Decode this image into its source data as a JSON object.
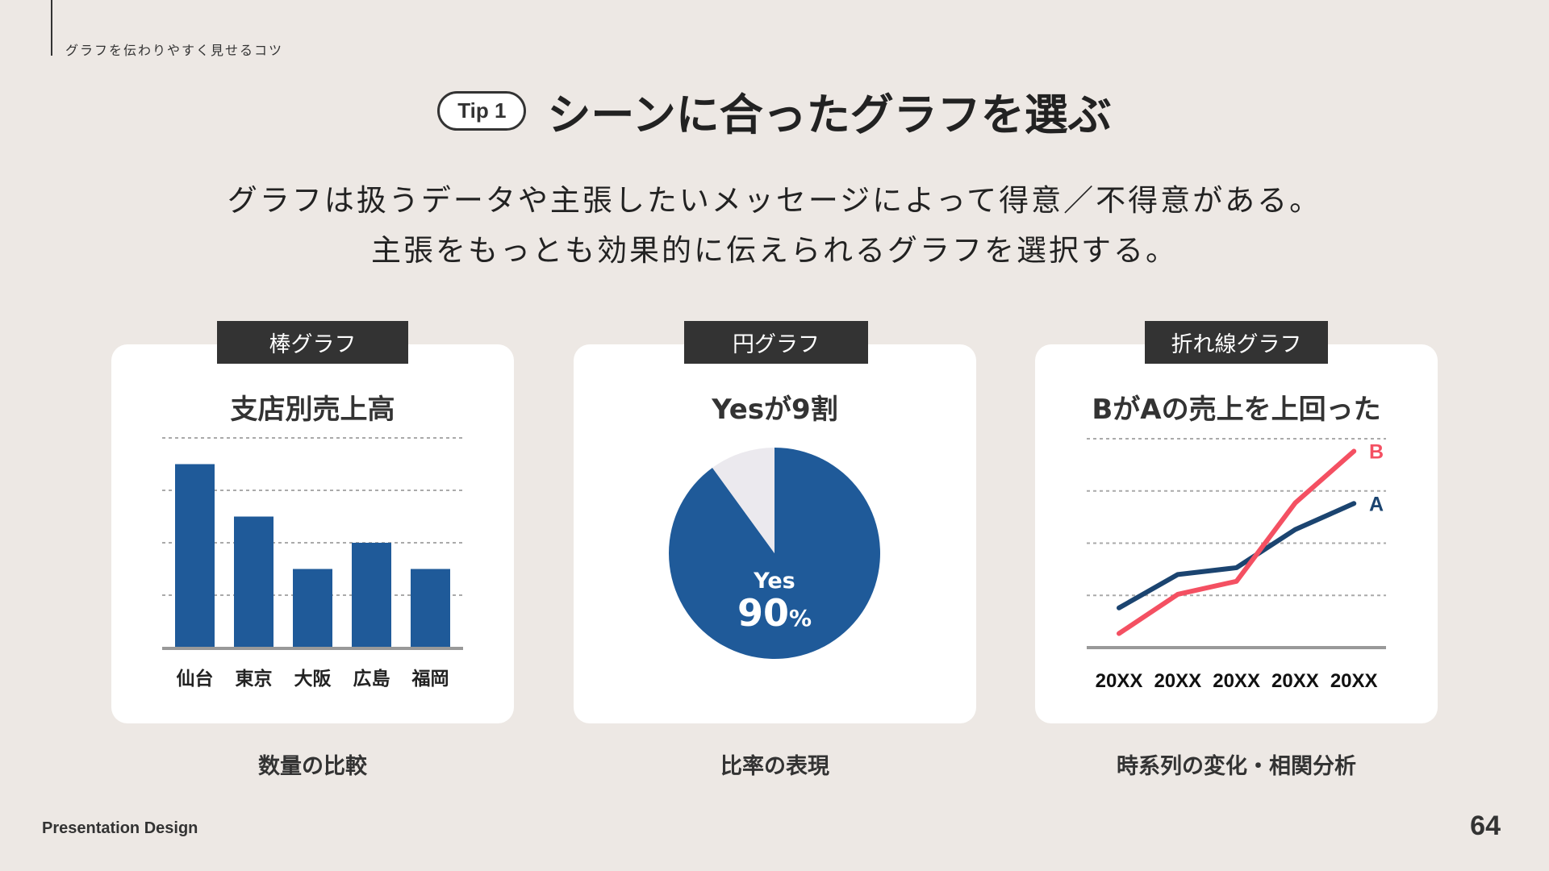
{
  "header": {
    "kicker": "グラフを伝わりやすく見せるコツ",
    "tip_label": "Tip 1",
    "title": "シーンに合ったグラフを選ぶ"
  },
  "lead": [
    "グラフは扱うデータや主張したいメッセージによって得意／不得意がある。",
    "主張をもっとも効果的に伝えられるグラフを選択する。"
  ],
  "colors": {
    "background": "#ede8e4",
    "primary": "#1f5a99",
    "line_a": "#1b4470",
    "line_b": "#f45062",
    "pie_rest": "#ebe9ee",
    "tab": "#333333"
  },
  "cards": [
    {
      "tab": "棒グラフ",
      "caption": "数量の比較"
    },
    {
      "tab": "円グラフ",
      "caption": "比率の表現"
    },
    {
      "tab": "折れ線グラフ",
      "caption": "時系列の変化・相関分析"
    }
  ],
  "chart_data": [
    {
      "type": "bar",
      "title": "支店別売上高",
      "categories": [
        "仙台",
        "東京",
        "大阪",
        "広島",
        "福岡"
      ],
      "values": [
        3.5,
        2.5,
        1.5,
        2.0,
        1.5
      ],
      "ylim": [
        0,
        4
      ],
      "grid": true
    },
    {
      "type": "pie",
      "title": "Yesが9割",
      "slices": [
        {
          "name": "Yes",
          "value": 90
        },
        {
          "value": 10
        }
      ],
      "label": "Yes",
      "value_label": "90",
      "unit": "%"
    },
    {
      "type": "line",
      "title": "BがAの売上を上回った",
      "categories": [
        "20XX",
        "20XX",
        "20XX",
        "20XX",
        "20XX"
      ],
      "ylim": [
        0,
        4
      ],
      "grid": true,
      "series": [
        {
          "name": "A",
          "values": [
            0.76,
            1.4,
            1.53,
            2.26,
            2.76
          ]
        },
        {
          "name": "B",
          "values": [
            0.27,
            1.02,
            1.27,
            2.77,
            3.76
          ]
        }
      ]
    }
  ],
  "footer": {
    "brand": "Presentation Design",
    "page": "64"
  }
}
